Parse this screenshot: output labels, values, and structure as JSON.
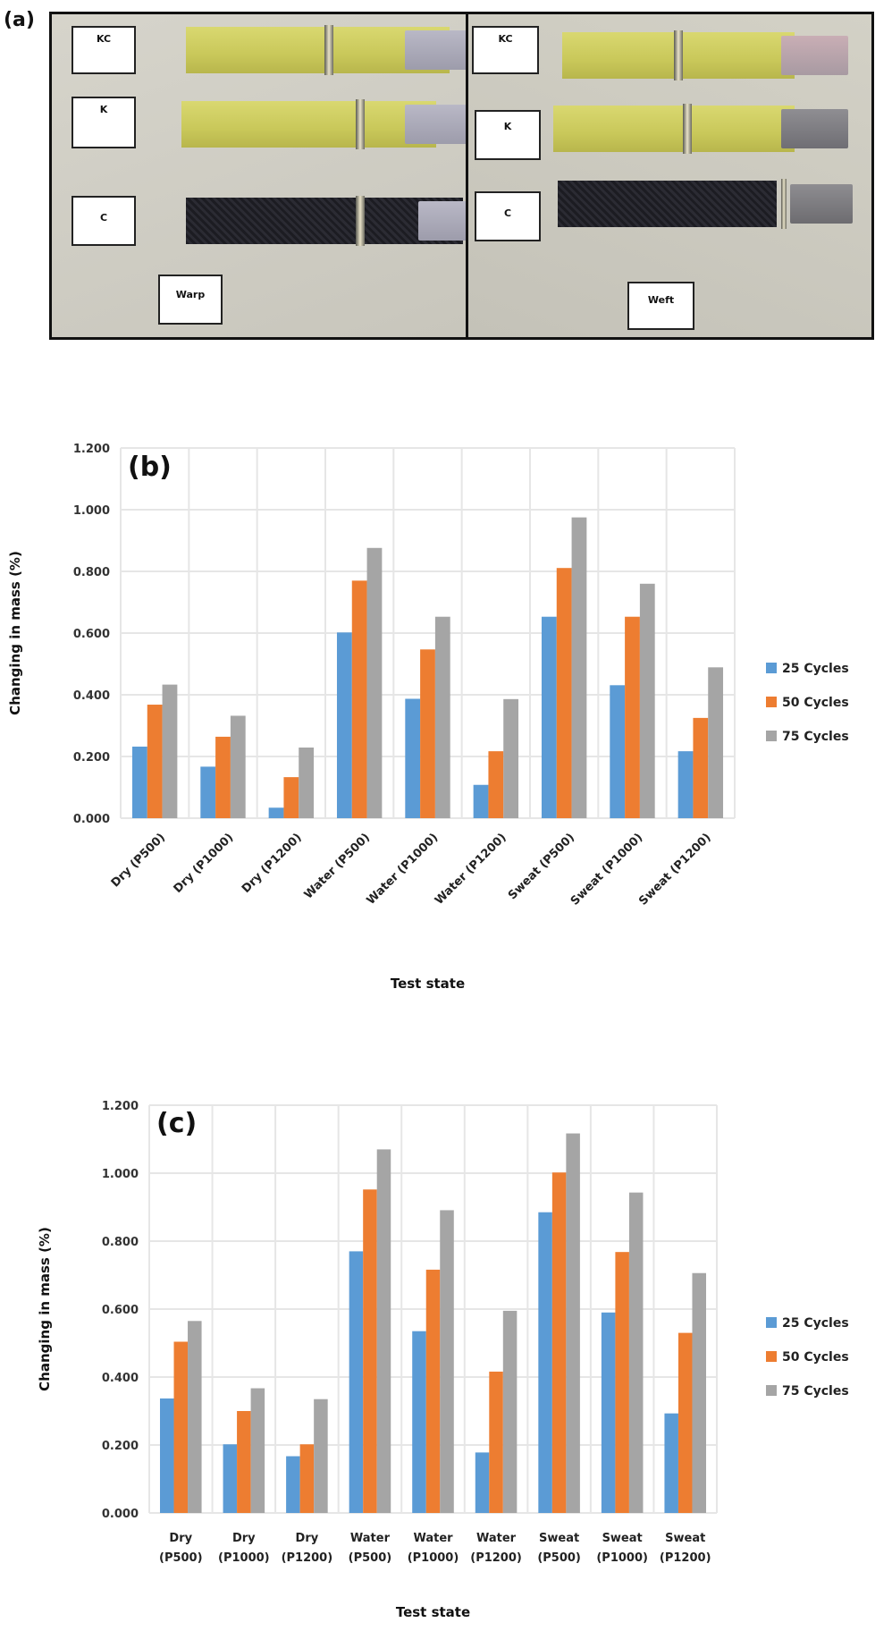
{
  "panel_a": {
    "letter": "(a)",
    "warp": {
      "title": "Warp",
      "specimens": [
        {
          "label": "KC",
          "material": "yellow",
          "fractured": true
        },
        {
          "label": "K",
          "material": "yellow",
          "fractured": true
        },
        {
          "label": "C",
          "material": "black",
          "fractured": true
        }
      ]
    },
    "weft": {
      "title": "Weft",
      "specimens": [
        {
          "label": "KC",
          "material": "yellow",
          "fractured": true
        },
        {
          "label": "K",
          "material": "yellow",
          "fractured": true
        },
        {
          "label": "C",
          "material": "black",
          "fractured": true
        }
      ]
    }
  },
  "colors": {
    "series_25": "#5b9bd5",
    "series_50": "#ed7d31",
    "series_75": "#a5a5a5",
    "grid": "#e6e6e6"
  },
  "chart_data": [
    {
      "id": "b",
      "letter": "(b)",
      "type": "bar",
      "title": "",
      "xlabel": "Test state",
      "ylabel": "Changing in mass (%)",
      "ylim": [
        0,
        1.2
      ],
      "yticks": [
        "0.000",
        "0.200",
        "0.400",
        "0.600",
        "0.800",
        "1.000",
        "1.200"
      ],
      "grid": true,
      "legend": "right",
      "label_style": "rotated",
      "categories": [
        "Dry (P500)",
        "Dry (P1000)",
        "Dry (P1200)",
        "Water (P500)",
        "Water (P1000)",
        "Water (P1200)",
        "Sweat (P500)",
        "Sweat (P1000)",
        "Sweat (P1200)"
      ],
      "series": [
        {
          "name": "25 Cycles",
          "values": [
            0.232,
            0.167,
            0.034,
            0.602,
            0.387,
            0.108,
            0.653,
            0.431,
            0.217
          ]
        },
        {
          "name": "50 Cycles",
          "values": [
            0.368,
            0.264,
            0.133,
            0.77,
            0.547,
            0.217,
            0.811,
            0.653,
            0.325
          ]
        },
        {
          "name": "75 Cycles",
          "values": [
            0.433,
            0.332,
            0.229,
            0.876,
            0.653,
            0.386,
            0.975,
            0.76,
            0.489
          ]
        }
      ]
    },
    {
      "id": "c",
      "letter": "(c)",
      "type": "bar",
      "title": "",
      "xlabel": "Test state",
      "ylabel": "Changing in mass (%)",
      "ylim": [
        0,
        1.2
      ],
      "yticks": [
        "0.000",
        "0.200",
        "0.400",
        "0.600",
        "0.800",
        "1.000",
        "1.200"
      ],
      "grid": true,
      "legend": "right",
      "label_style": "two-line",
      "categories": [
        "Dry (P500)",
        "Dry (P1000)",
        "Dry (P1200)",
        "Water (P500)",
        "Water (P1000)",
        "Water (P1200)",
        "Sweat (P500)",
        "Sweat (P1000)",
        "Sweat (P1200)"
      ],
      "series": [
        {
          "name": "25 Cycles",
          "values": [
            0.337,
            0.202,
            0.167,
            0.77,
            0.535,
            0.178,
            0.885,
            0.59,
            0.293
          ]
        },
        {
          "name": "50 Cycles",
          "values": [
            0.504,
            0.3,
            0.202,
            0.952,
            0.716,
            0.416,
            1.002,
            0.768,
            0.53
          ]
        },
        {
          "name": "75 Cycles",
          "values": [
            0.565,
            0.367,
            0.335,
            1.07,
            0.891,
            0.595,
            1.117,
            0.943,
            0.706
          ]
        }
      ]
    }
  ]
}
